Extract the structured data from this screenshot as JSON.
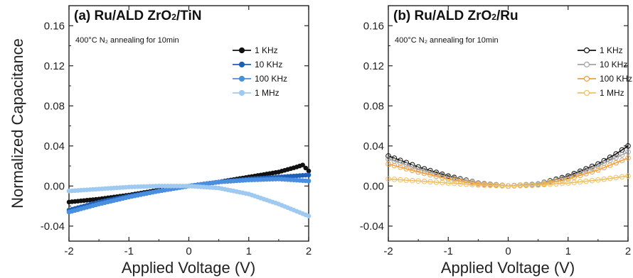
{
  "chart_data": [
    {
      "type": "line",
      "title": "(a) Ru/ALD ZrO2/TiN",
      "title_parts": {
        "prefix": "(a) Ru/ALD ZrO",
        "sub": "2",
        "suffix": "/TiN"
      },
      "annotation": "400°C N₂ annealing for 10min",
      "xlabel": "Applied Voltage (V)",
      "ylabel": "Normalized Capacitance",
      "xlim": [
        -2,
        2
      ],
      "ylim": [
        -0.055,
        0.18
      ],
      "xticks": [
        -2,
        -1,
        0,
        1,
        2
      ],
      "yticks": [
        -0.04,
        0.0,
        0.04,
        0.08,
        0.12,
        0.16
      ],
      "xtick_labels": [
        "-2",
        "-1",
        "0",
        "1",
        "2"
      ],
      "ytick_labels": [
        "-0.04",
        "0.00",
        "0.04",
        "0.08",
        "0.12",
        "0.16"
      ],
      "legend_position": "top-right",
      "marker": "filled",
      "series": [
        {
          "name": "1 KHz",
          "color": "#111111",
          "x": [
            -2,
            -1.5,
            -1,
            -0.5,
            0,
            0.5,
            1,
            1.5,
            1.8,
            1.9,
            2
          ],
          "y": [
            -0.016,
            -0.013,
            -0.009,
            -0.004,
            0.0,
            0.004,
            0.009,
            0.014,
            0.019,
            0.021,
            0.015
          ]
        },
        {
          "name": "10 KHz",
          "color": "#1f5fb8",
          "x": [
            -2,
            -1.5,
            -1,
            -0.5,
            0,
            0.5,
            1,
            1.5,
            2
          ],
          "y": [
            -0.024,
            -0.016,
            -0.01,
            -0.005,
            0.0,
            0.004,
            0.007,
            0.009,
            0.011
          ]
        },
        {
          "name": "100 KHz",
          "color": "#4a8ee0",
          "x": [
            -2,
            -1.5,
            -1,
            -0.5,
            0,
            0.5,
            1,
            1.5,
            2
          ],
          "y": [
            -0.026,
            -0.018,
            -0.011,
            -0.005,
            0.0,
            0.004,
            0.006,
            0.007,
            0.005
          ]
        },
        {
          "name": "1 MHz",
          "color": "#9ec9f0",
          "x": [
            -2,
            -1.5,
            -1,
            -0.5,
            0,
            0.5,
            1,
            1.5,
            2
          ],
          "y": [
            -0.005,
            -0.003,
            -0.001,
            0.0,
            0.0,
            -0.002,
            -0.008,
            -0.018,
            -0.03
          ]
        }
      ]
    },
    {
      "type": "line",
      "title": "(b) Ru/ALD ZrO2/Ru",
      "title_parts": {
        "prefix": "(b) Ru/ALD ZrO",
        "sub": "2",
        "suffix": "/Ru"
      },
      "annotation": "400°C N₂ annealing for 10min",
      "xlabel": "Applied Voltage (V)",
      "ylabel": "",
      "xlim": [
        -2,
        2
      ],
      "ylim": [
        -0.055,
        0.18
      ],
      "xticks": [
        -2,
        -1,
        0,
        1,
        2
      ],
      "yticks": [
        -0.04,
        0.0,
        0.04,
        0.08,
        0.12,
        0.16
      ],
      "xtick_labels": [
        "-2",
        "-1",
        "0",
        "1",
        "2"
      ],
      "ytick_labels": [
        "-0.04",
        "0.00",
        "0.04",
        "0.08",
        "0.12",
        "0.16"
      ],
      "legend_position": "top-right",
      "marker": "open",
      "series": [
        {
          "name": "1 KHz",
          "color": "#111111",
          "x": [
            -2,
            -1.5,
            -1,
            -0.5,
            0,
            0.5,
            1,
            1.5,
            1.8,
            2
          ],
          "y": [
            0.03,
            0.019,
            0.01,
            0.003,
            0.0,
            0.002,
            0.01,
            0.022,
            0.032,
            0.04
          ]
        },
        {
          "name": "10 KHz",
          "color": "#a3a3a3",
          "x": [
            -2,
            -1.5,
            -1,
            -0.5,
            0,
            0.5,
            1,
            1.5,
            2
          ],
          "y": [
            0.027,
            0.017,
            0.009,
            0.003,
            0.0,
            0.002,
            0.009,
            0.02,
            0.034
          ]
        },
        {
          "name": "100 KHz",
          "color": "#f0a040",
          "x": [
            -2,
            -1.5,
            -1,
            -0.5,
            0,
            0.5,
            1,
            1.5,
            2
          ],
          "y": [
            0.022,
            0.014,
            0.007,
            0.002,
            0.0,
            0.001,
            0.007,
            0.016,
            0.028
          ]
        },
        {
          "name": "1 MHz",
          "color": "#f0c060",
          "x": [
            -2,
            -1.5,
            -1,
            -0.5,
            0,
            0.5,
            1,
            1.5,
            2
          ],
          "y": [
            0.007,
            0.005,
            0.003,
            0.001,
            0.0,
            0.001,
            0.003,
            0.006,
            0.01
          ]
        }
      ]
    }
  ]
}
